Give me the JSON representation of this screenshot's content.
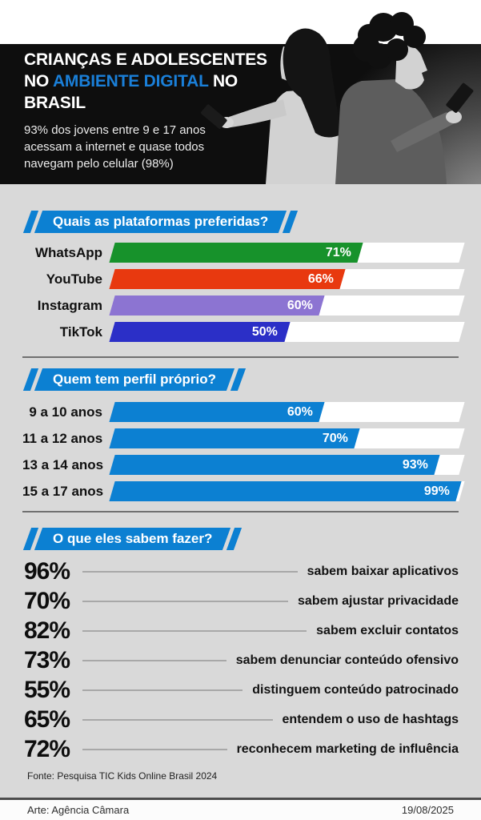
{
  "header": {
    "title_part1": "CRIANÇAS E ADOLESCENTES NO ",
    "title_highlight": "AMBIENTE DIGITAL",
    "title_part2": " NO BRASIL",
    "subtitle": "93% dos jovens entre 9 e 17 anos acessam a internet e quase todos navegam pelo celular (98%)"
  },
  "colors": {
    "accent_blue": "#0c80d2",
    "title_highlight_blue": "#1a7fd8",
    "background_gray": "#d9d9d9",
    "header_black": "#0e0e0e",
    "whatsapp_green": "#17922b",
    "youtube_red": "#e8390f",
    "instagram_purple": "#8c74d2",
    "tiktok_blue": "#2b2fc7",
    "track_white": "#ffffff"
  },
  "chart_data": [
    {
      "type": "bar",
      "title": "Quais as plataformas preferidas?",
      "categories": [
        "WhatsApp",
        "YouTube",
        "Instagram",
        "TikTok"
      ],
      "values": [
        71,
        66,
        60,
        50
      ],
      "value_labels": [
        "71%",
        "66%",
        "60%",
        "50%"
      ],
      "bar_colors": [
        "#17922b",
        "#e8390f",
        "#8c74d2",
        "#2b2fc7"
      ],
      "xlim": [
        0,
        100
      ],
      "unit": "%",
      "grid": false,
      "legend": "none"
    },
    {
      "type": "bar",
      "title": "Quem tem perfil próprio?",
      "categories": [
        "9 a 10 anos",
        "11 a 12 anos",
        "13 a 14 anos",
        "15 a 17 anos"
      ],
      "values": [
        60,
        70,
        93,
        99
      ],
      "value_labels": [
        "60%",
        "70%",
        "93%",
        "99%"
      ],
      "bar_colors": [
        "#0c80d2",
        "#0c80d2",
        "#0c80d2",
        "#0c80d2"
      ],
      "xlim": [
        0,
        100
      ],
      "unit": "%",
      "grid": false,
      "legend": "none"
    },
    {
      "type": "table",
      "title": "O que eles sabem fazer?",
      "rows": [
        {
          "value": "96%",
          "label": "sabem baixar aplicativos"
        },
        {
          "value": "70%",
          "label": "sabem ajustar privacidade"
        },
        {
          "value": "82%",
          "label": "sabem excluir contatos"
        },
        {
          "value": "73%",
          "label": "sabem denunciar conteúdo ofensivo"
        },
        {
          "value": "55%",
          "label": "distinguem conteúdo patrocinado"
        },
        {
          "value": "65%",
          "label": "entendem o uso de hashtags"
        },
        {
          "value": "72%",
          "label": "reconhecem marketing de influência"
        }
      ]
    }
  ],
  "footer": {
    "fonte": "Fonte: Pesquisa TIC Kids Online Brasil 2024",
    "arte": "Arte: Agência Câmara",
    "date": "19/08/2025"
  }
}
